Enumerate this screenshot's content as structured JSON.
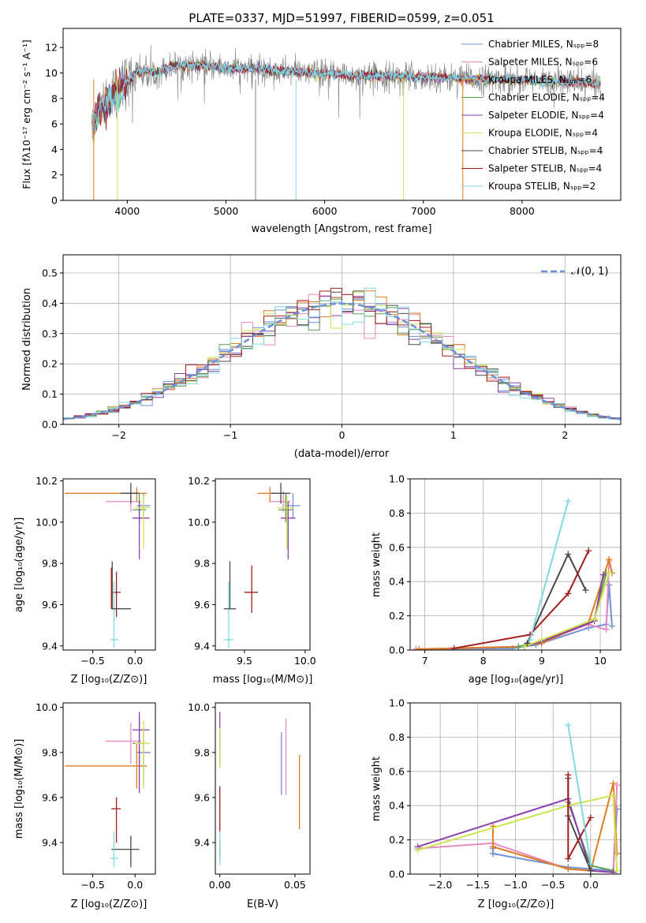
{
  "palette": [
    "#6f8fd8",
    "#e58ac1",
    "#e07b1f",
    "#5d9e4f",
    "#8a3fa8",
    "#cfe34e",
    "#4a4a4a",
    "#a51c1c",
    "#7fd9de"
  ],
  "chart_data": [
    {
      "id": "spectrum",
      "type": "line",
      "title": "PLATE=0337, MJD=51997, FIBERID=0599, z=0.051",
      "xlabel": "wavelength [Angstrom, rest frame]",
      "ylabel": "Flux [fλ10⁻¹⁷ erg cm⁻² s⁻¹ A⁻¹]",
      "xlim": [
        3350,
        9000
      ],
      "ylim": [
        0,
        13.5
      ],
      "xticks": [
        4000,
        5000,
        6000,
        7000,
        8000
      ],
      "yticks": [
        0,
        2,
        4,
        6,
        8,
        10,
        12
      ],
      "grid": false,
      "legend_position": "right",
      "legend": [
        "Chabrier MILES, Nₛₚₚ=8",
        "Salpeter MILES, Nₛₚₚ=6",
        "Kroupa MILES, Nₛₚₚ=6",
        "Chabrier ELODIE, Nₛₚₚ=4",
        "Salpeter ELODIE, Nₛₚₚ=4",
        "Kroupa ELODIE, Nₛₚₚ=4",
        "Chabrier STELIB, Nₛₚₚ=4",
        "Salpeter STELIB, Nₛₚₚ=4",
        "Kroupa STELIB, Nₛₚₚ=2"
      ],
      "continuum": {
        "x": [
          3650,
          3700,
          3800,
          3900,
          4000,
          4100,
          4200,
          4300,
          4400,
          4500,
          4700,
          4900,
          5100,
          5300,
          5500,
          5700,
          5900,
          6100,
          6300,
          6500,
          6700,
          6900,
          7100,
          7300,
          7500,
          7700,
          7900,
          8100,
          8300,
          8500,
          8700,
          8800
        ],
        "y": [
          6.2,
          6.8,
          7.8,
          8.5,
          9.3,
          10.0,
          10.2,
          10.0,
          10.4,
          10.6,
          10.6,
          10.5,
          10.3,
          10.3,
          10.2,
          10.1,
          10.0,
          9.9,
          9.8,
          9.8,
          9.8,
          9.7,
          9.7,
          9.6,
          9.5,
          9.5,
          9.5,
          9.4,
          9.3,
          9.3,
          9.2,
          9.2
        ]
      }
    },
    {
      "id": "residuals",
      "type": "histogram",
      "xlabel": "(data-model)/error",
      "ylabel": "Normed distribution",
      "xlim": [
        -2.5,
        2.5
      ],
      "ylim": [
        0,
        0.56
      ],
      "xticks": [
        -2,
        -1,
        0,
        1,
        2
      ],
      "yticks": [
        0.0,
        0.1,
        0.2,
        0.3,
        0.4,
        0.5
      ],
      "grid": true,
      "legend": [
        "𝒩(0, 1)"
      ],
      "legend_position": "top-right",
      "bin_width": 0.1,
      "bin_start": -2.5,
      "reference_curve": "normal(0,1)"
    },
    {
      "id": "age-vs-Z",
      "type": "errorbar",
      "xlabel": "Z [log₁₀(Z/Z⊙)]",
      "ylabel": "age  [log₁₀(age/yr)]",
      "xlim": [
        -0.85,
        0.24
      ],
      "ylim": [
        9.38,
        10.21
      ],
      "xticks": [
        -0.5,
        0.0
      ],
      "yticks": [
        9.4,
        9.6,
        9.8,
        10.0,
        10.2
      ],
      "grid": false,
      "points": [
        {
          "x": 0.1,
          "y": 10.08,
          "xerr": [
            0.08,
            0.08
          ],
          "yerr": [
            0.06,
            0.06
          ]
        },
        {
          "x": -0.05,
          "y": 10.1,
          "xerr": [
            0.3,
            0.12
          ],
          "yerr": [
            0.05,
            0.05
          ]
        },
        {
          "x": 0.02,
          "y": 10.14,
          "xerr": [
            0.85,
            0.12
          ],
          "yerr": [
            0.04,
            0.03
          ]
        },
        {
          "x": 0.05,
          "y": 10.06,
          "xerr": [
            0.08,
            0.08
          ],
          "yerr": [
            0.06,
            0.08
          ]
        },
        {
          "x": 0.05,
          "y": 10.02,
          "xerr": [
            0.08,
            0.12
          ],
          "yerr": [
            0.2,
            0.08
          ]
        },
        {
          "x": 0.1,
          "y": 10.07,
          "xerr": [
            0.1,
            0.08
          ],
          "yerr": [
            0.2,
            0.06
          ]
        },
        {
          "x": -0.05,
          "y": 10.14,
          "xerr": [
            0.12,
            0.1
          ],
          "yerr": [
            0.05,
            0.05
          ]
        },
        {
          "x": -0.22,
          "y": 9.66,
          "xerr": [
            0.06,
            0.05
          ],
          "yerr": [
            0.12,
            0.1
          ]
        },
        {
          "x": -0.25,
          "y": 9.43,
          "xerr": [
            0.04,
            0.05
          ],
          "yerr": [
            0.04,
            0.28
          ]
        }
      ],
      "extra_lines": [
        {
          "x": [
            -0.28,
            -0.05
          ],
          "y": [
            9.58,
            9.58
          ],
          "color_index": 6
        },
        {
          "x": [
            -0.27,
            -0.27
          ],
          "y": [
            9.58,
            9.81
          ],
          "color_index": 6
        },
        {
          "x": [
            -0.28,
            -0.28
          ],
          "y": [
            9.58,
            9.78
          ],
          "color_index": 7
        }
      ]
    },
    {
      "id": "age-vs-mass",
      "type": "errorbar",
      "xlabel": "mass [log₁₀(M/M⊙)]",
      "ylabel": "",
      "xlim": [
        9.26,
        10.04
      ],
      "ylim": [
        9.38,
        10.21
      ],
      "xticks": [
        9.5,
        10.0
      ],
      "yticks": [
        9.4,
        9.6,
        9.8,
        10.0,
        10.2
      ],
      "grid": false,
      "points": [
        {
          "x": 9.9,
          "y": 10.08,
          "xerr": [
            0.06,
            0.06
          ],
          "yerr": [
            0.06,
            0.06
          ]
        },
        {
          "x": 9.82,
          "y": 10.1,
          "xerr": [
            0.12,
            0.06
          ],
          "yerr": [
            0.05,
            0.05
          ]
        },
        {
          "x": 9.71,
          "y": 10.14,
          "xerr": [
            0.1,
            0.06
          ],
          "yerr": [
            0.04,
            0.03
          ]
        },
        {
          "x": 9.84,
          "y": 10.06,
          "xerr": [
            0.06,
            0.06
          ],
          "yerr": [
            0.06,
            0.08
          ]
        },
        {
          "x": 9.86,
          "y": 10.02,
          "xerr": [
            0.06,
            0.06
          ],
          "yerr": [
            0.2,
            0.08
          ]
        },
        {
          "x": 9.85,
          "y": 10.07,
          "xerr": [
            0.08,
            0.06
          ],
          "yerr": [
            0.2,
            0.06
          ]
        },
        {
          "x": 9.8,
          "y": 10.14,
          "xerr": [
            0.08,
            0.08
          ],
          "yerr": [
            0.05,
            0.05
          ]
        },
        {
          "x": 9.56,
          "y": 9.66,
          "xerr": [
            0.06,
            0.05
          ],
          "yerr": [
            0.1,
            0.13
          ]
        },
        {
          "x": 9.37,
          "y": 9.43,
          "xerr": [
            0.04,
            0.04
          ],
          "yerr": [
            0.04,
            0.28
          ]
        }
      ],
      "extra_lines": [
        {
          "x": [
            9.33,
            9.43
          ],
          "y": [
            9.58,
            9.58
          ],
          "color_index": 6
        },
        {
          "x": [
            9.38,
            9.38
          ],
          "y": [
            9.58,
            9.81
          ],
          "color_index": 6
        }
      ]
    },
    {
      "id": "weight-vs-age",
      "type": "line",
      "xlabel": "age  [log₁₀(age/yr)]",
      "ylabel": "mass weight",
      "xlim": [
        6.75,
        10.35
      ],
      "ylim": [
        0,
        1.0
      ],
      "xticks": [
        7,
        8,
        9,
        10
      ],
      "yticks": [
        0.0,
        0.2,
        0.4,
        0.6,
        0.8,
        1.0
      ],
      "grid": true,
      "series": [
        {
          "x": [
            6.85,
            8.5,
            8.9,
            9.8,
            10.1,
            10.15,
            10.2
          ],
          "y": [
            0.005,
            0.01,
            0.03,
            0.13,
            0.15,
            0.38,
            0.14
          ]
        },
        {
          "x": [
            6.85,
            8.6,
            9.0,
            9.8,
            10.1,
            10.15
          ],
          "y": [
            0.005,
            0.02,
            0.05,
            0.15,
            0.12,
            0.52
          ]
        },
        {
          "x": [
            6.9,
            8.6,
            9.0,
            9.8,
            10.15,
            10.2
          ],
          "y": [
            0.005,
            0.02,
            0.04,
            0.16,
            0.53,
            0.45
          ]
        },
        {
          "x": [
            8.6,
            9.0,
            9.9,
            10.1
          ],
          "y": [
            0.02,
            0.05,
            0.18,
            0.45
          ]
        },
        {
          "x": [
            8.7,
            9.0,
            9.9,
            10.05
          ],
          "y": [
            0.02,
            0.05,
            0.17,
            0.44
          ]
        },
        {
          "x": [
            8.7,
            9.0,
            9.9,
            10.15
          ],
          "y": [
            0.02,
            0.06,
            0.18,
            0.45
          ]
        },
        {
          "x": [
            8.75,
            9.45,
            9.75
          ],
          "y": [
            0.04,
            0.56,
            0.35
          ]
        },
        {
          "x": [
            7.5,
            8.8,
            9.45,
            9.8
          ],
          "y": [
            0.01,
            0.09,
            0.33,
            0.58
          ]
        },
        {
          "x": [
            8.8,
            9.45
          ],
          "y": [
            0.06,
            0.87
          ]
        }
      ]
    },
    {
      "id": "mass-vs-Z",
      "type": "errorbar",
      "xlabel": "Z [log₁₀(Z/Z⊙)]",
      "ylabel": "mass [log₁₀(M/M⊙)]",
      "xlim": [
        -0.85,
        0.24
      ],
      "ylim": [
        9.26,
        10.02
      ],
      "xticks": [
        -0.5,
        0.0
      ],
      "yticks": [
        9.4,
        9.6,
        9.8,
        10.0
      ],
      "grid": false,
      "points": [
        {
          "x": 0.1,
          "y": 9.8,
          "xerr": [
            0.08,
            0.08
          ],
          "yerr": [
            0.15,
            0.1
          ]
        },
        {
          "x": -0.05,
          "y": 9.85,
          "xerr": [
            0.3,
            0.12
          ],
          "yerr": [
            0.1,
            0.08
          ]
        },
        {
          "x": 0.02,
          "y": 9.74,
          "xerr": [
            0.85,
            0.12
          ],
          "yerr": [
            0.1,
            0.1
          ]
        },
        {
          "x": 0.05,
          "y": 9.84,
          "xerr": [
            0.08,
            0.08
          ],
          "yerr": [
            0.1,
            0.12
          ]
        },
        {
          "x": 0.05,
          "y": 9.9,
          "xerr": [
            0.08,
            0.12
          ],
          "yerr": [
            0.28,
            0.08
          ]
        },
        {
          "x": 0.1,
          "y": 9.84,
          "xerr": [
            0.1,
            0.08
          ],
          "yerr": [
            0.2,
            0.1
          ]
        },
        {
          "x": -0.05,
          "y": 9.37,
          "xerr": [
            0.23,
            0.1
          ],
          "yerr": [
            0.08,
            0.06
          ]
        },
        {
          "x": -0.22,
          "y": 9.55,
          "xerr": [
            0.06,
            0.05
          ],
          "yerr": [
            0.15,
            0.05
          ]
        },
        {
          "x": -0.25,
          "y": 9.33,
          "xerr": [
            0.04,
            0.05
          ],
          "yerr": [
            0.04,
            0.12
          ]
        }
      ]
    },
    {
      "id": "mass-vs-EBV",
      "type": "errorbar",
      "xlabel": "E(B-V)",
      "ylabel": "",
      "xlim": [
        -0.003,
        0.06
      ],
      "ylim": [
        9.26,
        10.02
      ],
      "xticks": [
        0.0,
        0.05
      ],
      "yticks": [
        9.4,
        9.6,
        9.8,
        10.0
      ],
      "grid": false,
      "points": [
        {
          "x": 0.041,
          "y": 9.75,
          "xerr": [
            0,
            0
          ],
          "yerr": [
            0.14,
            0.14
          ]
        },
        {
          "x": 0.044,
          "y": 9.78,
          "xerr": [
            0,
            0
          ],
          "yerr": [
            0.17,
            0.17
          ]
        },
        {
          "x": 0.053,
          "y": 9.63,
          "xerr": [
            0,
            0
          ],
          "yerr": [
            0.17,
            0.16
          ]
        },
        {
          "x": 0.0,
          "y": 9.82,
          "xerr": [
            0,
            0
          ],
          "yerr": [
            0.08,
            0.08
          ]
        },
        {
          "x": 0.0,
          "y": 9.9,
          "xerr": [
            0,
            0
          ],
          "yerr": [
            0.08,
            0.08
          ]
        },
        {
          "x": 0.0,
          "y": 9.83,
          "xerr": [
            0,
            0
          ],
          "yerr": [
            0.1,
            0.08
          ]
        },
        {
          "x": 0.0,
          "y": 9.37,
          "xerr": [
            0,
            0
          ],
          "yerr": [
            0.04,
            0.04
          ]
        },
        {
          "x": 0.0,
          "y": 9.55,
          "xerr": [
            0,
            0
          ],
          "yerr": [
            0.1,
            0.1
          ]
        },
        {
          "x": 0.0,
          "y": 9.35,
          "xerr": [
            0,
            0
          ],
          "yerr": [
            0.05,
            0.1
          ]
        }
      ]
    },
    {
      "id": "weight-vs-Z",
      "type": "line",
      "xlabel": "Z [log₁₀(Z/Z⊙)]",
      "ylabel": "mass weight",
      "xlim": [
        -2.4,
        0.4
      ],
      "ylim": [
        0,
        1.0
      ],
      "xticks": [
        -2.0,
        -1.5,
        -1.0,
        -0.5,
        0.0
      ],
      "yticks": [
        0.0,
        0.2,
        0.4,
        0.6,
        0.8,
        1.0
      ],
      "grid": true,
      "series": [
        {
          "x": [
            -1.3,
            -1.3,
            -0.3,
            0.0,
            0.3,
            0.35
          ],
          "y": [
            0.15,
            0.12,
            0.04,
            0.03,
            0.02,
            0.38
          ]
        },
        {
          "x": [
            -2.3,
            -1.3,
            -0.3,
            0.3,
            0.35
          ],
          "y": [
            0.15,
            0.18,
            0.03,
            0.01,
            0.52
          ]
        },
        {
          "x": [
            -1.3,
            -1.3,
            -0.3,
            0.0,
            0.3,
            0.35
          ],
          "y": [
            0.28,
            0.16,
            0.03,
            0.02,
            0.53,
            0.12
          ]
        },
        {
          "x": [
            -0.3,
            0.0,
            0.3
          ],
          "y": [
            0.42,
            0.05,
            0.02
          ]
        },
        {
          "x": [
            -2.3,
            -0.3,
            0.0,
            0.3
          ],
          "y": [
            0.16,
            0.44,
            0.02,
            0.01
          ]
        },
        {
          "x": [
            -2.3,
            -0.3,
            0.3,
            0.35
          ],
          "y": [
            0.14,
            0.4,
            0.46,
            0.02
          ]
        },
        {
          "x": [
            -0.3,
            -0.3,
            0.0
          ],
          "y": [
            0.56,
            0.34,
            0.02
          ]
        },
        {
          "x": [
            -0.3,
            -0.3,
            0.0
          ],
          "y": [
            0.58,
            0.09,
            0.33
          ]
        },
        {
          "x": [
            -0.3,
            0.0
          ],
          "y": [
            0.87,
            0.06
          ]
        }
      ]
    }
  ]
}
